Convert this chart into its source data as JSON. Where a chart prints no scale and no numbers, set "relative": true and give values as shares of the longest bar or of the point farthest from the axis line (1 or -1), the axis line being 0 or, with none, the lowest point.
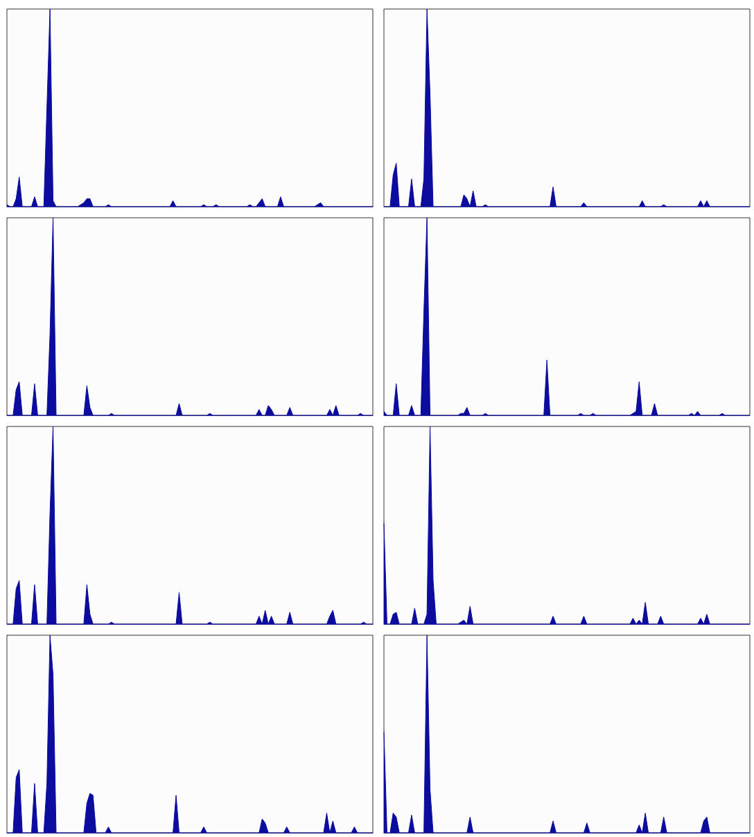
{
  "chart_data": [
    {
      "type": "area",
      "relative": true,
      "color": "#0c0c9e",
      "categories": [
        null,
        null,
        null,
        null,
        null,
        null,
        null,
        null,
        null,
        null,
        null,
        null,
        null,
        null,
        null,
        null,
        null,
        null,
        null,
        null,
        null,
        null,
        null,
        null,
        null,
        null,
        null,
        null,
        null,
        null,
        null,
        null,
        null,
        null,
        null,
        null,
        null,
        null,
        null,
        null,
        null,
        null,
        null,
        null,
        null,
        null,
        null,
        null,
        null,
        null,
        null,
        null,
        null,
        null,
        null,
        null,
        null,
        null,
        null,
        null,
        null,
        null,
        null,
        null,
        null,
        null,
        null,
        null,
        null,
        null,
        null,
        null,
        null,
        null,
        null,
        null,
        null,
        null,
        null,
        null,
        null,
        null,
        null,
        null,
        null,
        null,
        null,
        null,
        null,
        null,
        null,
        null,
        null,
        null,
        null,
        null,
        null,
        null,
        null,
        null,
        null,
        null,
        null,
        null,
        null,
        null,
        null,
        null,
        null,
        null,
        null,
        null,
        null,
        null,
        null,
        null,
        null,
        null,
        null,
        null
      ],
      "values": [
        0.01,
        0,
        0,
        0.04,
        0.15,
        0,
        0,
        0,
        0,
        0.05,
        0,
        0,
        0,
        0.5,
        1,
        0.03,
        0,
        0,
        0,
        0,
        0,
        0,
        0,
        0,
        0.01,
        0.02,
        0.04,
        0.04,
        0,
        0,
        0,
        0,
        0,
        0.01,
        0,
        0,
        0,
        0,
        0,
        0,
        0,
        0,
        0,
        0,
        0,
        0,
        0,
        0,
        0,
        0,
        0,
        0,
        0,
        0,
        0.03,
        0,
        0,
        0,
        0,
        0,
        0,
        0,
        0,
        0,
        0.01,
        0,
        0,
        0,
        0.01,
        0,
        0,
        0,
        0,
        0,
        0,
        0,
        0,
        0,
        0,
        0.01,
        0,
        0,
        0.02,
        0.04,
        0,
        0,
        0,
        0,
        0,
        0.05,
        0,
        0,
        0,
        0,
        0,
        0,
        0,
        0,
        0,
        0,
        0,
        0.01,
        0.02,
        0,
        0,
        0,
        0,
        0,
        0,
        0,
        0,
        0,
        0,
        0,
        0,
        0,
        0,
        0,
        0,
        0
      ]
    },
    {
      "type": "area",
      "relative": true,
      "color": "#0c0c9e",
      "categories": [
        null,
        null,
        null,
        null,
        null,
        null,
        null,
        null,
        null,
        null,
        null,
        null,
        null,
        null,
        null,
        null,
        null,
        null,
        null,
        null,
        null,
        null,
        null,
        null,
        null,
        null,
        null,
        null,
        null,
        null,
        null,
        null,
        null,
        null,
        null,
        null,
        null,
        null,
        null,
        null,
        null,
        null,
        null,
        null,
        null,
        null,
        null,
        null,
        null,
        null,
        null,
        null,
        null,
        null,
        null,
        null,
        null,
        null,
        null,
        null,
        null,
        null,
        null,
        null,
        null,
        null,
        null,
        null,
        null,
        null,
        null,
        null,
        null,
        null,
        null,
        null,
        null,
        null,
        null,
        null,
        null,
        null,
        null,
        null,
        null,
        null,
        null,
        null,
        null,
        null,
        null,
        null,
        null,
        null,
        null,
        null,
        null,
        null,
        null,
        null,
        null,
        null,
        null,
        null,
        null,
        null,
        null,
        null,
        null,
        null,
        null,
        null,
        null,
        null,
        null,
        null,
        null,
        null,
        null,
        null
      ],
      "values": [
        0,
        0,
        0,
        0.16,
        0.22,
        0,
        0,
        0,
        0,
        0.14,
        0,
        0,
        0,
        0.14,
        1,
        0.57,
        0,
        0,
        0,
        0,
        0,
        0,
        0,
        0,
        0,
        0,
        0.06,
        0.04,
        0,
        0.08,
        0,
        0,
        0,
        0.01,
        0,
        0,
        0,
        0,
        0,
        0,
        0,
        0,
        0,
        0,
        0,
        0,
        0,
        0,
        0,
        0,
        0,
        0,
        0,
        0,
        0,
        0.1,
        0,
        0,
        0,
        0,
        0,
        0,
        0,
        0,
        0,
        0.02,
        0,
        0,
        0,
        0,
        0,
        0,
        0,
        0,
        0,
        0,
        0,
        0,
        0,
        0,
        0,
        0,
        0,
        0,
        0.03,
        0,
        0,
        0,
        0,
        0,
        0,
        0.01,
        0,
        0,
        0,
        0,
        0,
        0,
        0,
        0,
        0,
        0,
        0,
        0.03,
        0,
        0.03,
        0,
        0,
        0,
        0,
        0,
        0,
        0,
        0,
        0,
        0,
        0,
        0,
        0,
        0
      ]
    },
    {
      "type": "area",
      "relative": true,
      "color": "#0c0c9e",
      "categories": [
        null,
        null,
        null,
        null,
        null,
        null,
        null,
        null,
        null,
        null,
        null,
        null,
        null,
        null,
        null,
        null,
        null,
        null,
        null,
        null,
        null,
        null,
        null,
        null,
        null,
        null,
        null,
        null,
        null,
        null,
        null,
        null,
        null,
        null,
        null,
        null,
        null,
        null,
        null,
        null,
        null,
        null,
        null,
        null,
        null,
        null,
        null,
        null,
        null,
        null,
        null,
        null,
        null,
        null,
        null,
        null,
        null,
        null,
        null,
        null,
        null,
        null,
        null,
        null,
        null,
        null,
        null,
        null,
        null,
        null,
        null,
        null,
        null,
        null,
        null,
        null,
        null,
        null,
        null,
        null,
        null,
        null,
        null,
        null,
        null,
        null,
        null,
        null,
        null,
        null,
        null,
        null,
        null,
        null,
        null,
        null,
        null,
        null,
        null,
        null,
        null,
        null,
        null,
        null,
        null,
        null,
        null,
        null,
        null,
        null,
        null,
        null,
        null,
        null,
        null,
        null,
        null,
        null,
        null,
        null
      ],
      "values": [
        0,
        0,
        0,
        0.13,
        0.17,
        0,
        0,
        0,
        0,
        0.16,
        0,
        0,
        0,
        0,
        0.41,
        1,
        0,
        0,
        0,
        0,
        0,
        0,
        0,
        0,
        0,
        0,
        0.15,
        0.04,
        0,
        0,
        0,
        0,
        0,
        0,
        0.01,
        0,
        0,
        0,
        0,
        0,
        0,
        0,
        0,
        0,
        0,
        0,
        0,
        0,
        0,
        0,
        0,
        0,
        0,
        0,
        0,
        0,
        0.06,
        0,
        0,
        0,
        0,
        0,
        0,
        0,
        0,
        0,
        0.01,
        0,
        0,
        0,
        0,
        0,
        0,
        0,
        0,
        0,
        0,
        0,
        0,
        0,
        0,
        0,
        0.03,
        0,
        0,
        0.05,
        0.03,
        0,
        0,
        0,
        0,
        0,
        0.04,
        0,
        0,
        0,
        0,
        0,
        0,
        0,
        0,
        0,
        0,
        0,
        0,
        0.03,
        0,
        0.05,
        0,
        0,
        0,
        0,
        0,
        0,
        0,
        0.01,
        0,
        0,
        0,
        0
      ]
    },
    {
      "type": "area",
      "relative": true,
      "color": "#0c0c9e",
      "categories": [
        null,
        null,
        null,
        null,
        null,
        null,
        null,
        null,
        null,
        null,
        null,
        null,
        null,
        null,
        null,
        null,
        null,
        null,
        null,
        null,
        null,
        null,
        null,
        null,
        null,
        null,
        null,
        null,
        null,
        null,
        null,
        null,
        null,
        null,
        null,
        null,
        null,
        null,
        null,
        null,
        null,
        null,
        null,
        null,
        null,
        null,
        null,
        null,
        null,
        null,
        null,
        null,
        null,
        null,
        null,
        null,
        null,
        null,
        null,
        null,
        null,
        null,
        null,
        null,
        null,
        null,
        null,
        null,
        null,
        null,
        null,
        null,
        null,
        null,
        null,
        null,
        null,
        null,
        null,
        null,
        null,
        null,
        null,
        null,
        null,
        null,
        null,
        null,
        null,
        null,
        null,
        null,
        null,
        null,
        null,
        null,
        null,
        null,
        null,
        null,
        null,
        null,
        null,
        null,
        null,
        null,
        null,
        null,
        null,
        null,
        null,
        null,
        null,
        null,
        null,
        null,
        null,
        null,
        null,
        null
      ],
      "values": [
        0.02,
        0,
        0,
        0,
        0.16,
        0,
        0,
        0,
        0,
        0.05,
        0,
        0,
        0,
        0.53,
        1,
        0,
        0,
        0,
        0,
        0,
        0,
        0,
        0,
        0,
        0,
        0.01,
        0.01,
        0.04,
        0,
        0,
        0,
        0,
        0,
        0.01,
        0,
        0,
        0,
        0,
        0,
        0,
        0,
        0,
        0,
        0,
        0,
        0,
        0,
        0,
        0,
        0,
        0,
        0,
        0,
        0.28,
        0,
        0,
        0,
        0,
        0,
        0,
        0,
        0,
        0,
        0,
        0.01,
        0,
        0,
        0,
        0.01,
        0,
        0,
        0,
        0,
        0,
        0,
        0,
        0,
        0,
        0,
        0,
        0,
        0.01,
        0.02,
        0.17,
        0,
        0,
        0,
        0,
        0.06,
        0,
        0,
        0,
        0,
        0,
        0,
        0,
        0,
        0,
        0,
        0,
        0.01,
        0,
        0.02,
        0,
        0,
        0,
        0,
        0,
        0,
        0,
        0.01,
        0,
        0,
        0,
        0,
        0,
        0,
        0,
        0,
        0
      ]
    },
    {
      "type": "area",
      "relative": true,
      "color": "#0c0c9e",
      "categories": [
        null,
        null,
        null,
        null,
        null,
        null,
        null,
        null,
        null,
        null,
        null,
        null,
        null,
        null,
        null,
        null,
        null,
        null,
        null,
        null,
        null,
        null,
        null,
        null,
        null,
        null,
        null,
        null,
        null,
        null,
        null,
        null,
        null,
        null,
        null,
        null,
        null,
        null,
        null,
        null,
        null,
        null,
        null,
        null,
        null,
        null,
        null,
        null,
        null,
        null,
        null,
        null,
        null,
        null,
        null,
        null,
        null,
        null,
        null,
        null,
        null,
        null,
        null,
        null,
        null,
        null,
        null,
        null,
        null,
        null,
        null,
        null,
        null,
        null,
        null,
        null,
        null,
        null,
        null,
        null,
        null,
        null,
        null,
        null,
        null,
        null,
        null,
        null,
        null,
        null,
        null,
        null,
        null,
        null,
        null,
        null,
        null,
        null,
        null,
        null,
        null,
        null,
        null,
        null,
        null,
        null,
        null,
        null,
        null,
        null,
        null,
        null,
        null,
        null,
        null,
        null,
        null,
        null,
        null,
        null
      ],
      "values": [
        0,
        0,
        0,
        0.18,
        0.22,
        0,
        0,
        0,
        0,
        0.2,
        0,
        0,
        0,
        0,
        0.56,
        1,
        0,
        0,
        0,
        0,
        0,
        0,
        0,
        0,
        0,
        0,
        0.2,
        0.05,
        0,
        0,
        0,
        0,
        0,
        0,
        0.01,
        0,
        0,
        0,
        0,
        0,
        0,
        0,
        0,
        0,
        0,
        0,
        0,
        0,
        0,
        0,
        0,
        0,
        0,
        0,
        0,
        0,
        0.16,
        0,
        0,
        0,
        0,
        0,
        0,
        0,
        0,
        0,
        0.01,
        0,
        0,
        0,
        0,
        0,
        0,
        0,
        0,
        0,
        0,
        0,
        0,
        0,
        0,
        0,
        0.04,
        0,
        0.07,
        0,
        0.04,
        0,
        0,
        0,
        0,
        0,
        0.06,
        0,
        0,
        0,
        0,
        0,
        0,
        0,
        0,
        0,
        0,
        0,
        0,
        0.04,
        0.07,
        0,
        0,
        0,
        0,
        0,
        0,
        0,
        0,
        0,
        0.01,
        0,
        0,
        0
      ]
    },
    {
      "type": "area",
      "relative": true,
      "color": "#0c0c9e",
      "categories": [
        null,
        null,
        null,
        null,
        null,
        null,
        null,
        null,
        null,
        null,
        null,
        null,
        null,
        null,
        null,
        null,
        null,
        null,
        null,
        null,
        null,
        null,
        null,
        null,
        null,
        null,
        null,
        null,
        null,
        null,
        null,
        null,
        null,
        null,
        null,
        null,
        null,
        null,
        null,
        null,
        null,
        null,
        null,
        null,
        null,
        null,
        null,
        null,
        null,
        null,
        null,
        null,
        null,
        null,
        null,
        null,
        null,
        null,
        null,
        null,
        null,
        null,
        null,
        null,
        null,
        null,
        null,
        null,
        null,
        null,
        null,
        null,
        null,
        null,
        null,
        null,
        null,
        null,
        null,
        null,
        null,
        null,
        null,
        null,
        null,
        null,
        null,
        null,
        null,
        null,
        null,
        null,
        null,
        null,
        null,
        null,
        null,
        null,
        null,
        null,
        null,
        null,
        null,
        null,
        null,
        null,
        null,
        null,
        null,
        null,
        null,
        null,
        null,
        null,
        null,
        null,
        null,
        null,
        null,
        null
      ],
      "values": [
        0.51,
        0,
        0,
        0.05,
        0.06,
        0,
        0,
        0,
        0,
        0,
        0.08,
        0,
        0,
        0,
        0.05,
        1,
        0.22,
        0,
        0,
        0,
        0,
        0,
        0,
        0,
        0,
        0.01,
        0.02,
        0,
        0.09,
        0,
        0,
        0,
        0,
        0,
        0,
        0,
        0,
        0,
        0,
        0,
        0,
        0,
        0,
        0,
        0,
        0,
        0,
        0,
        0,
        0,
        0,
        0,
        0,
        0,
        0,
        0.04,
        0,
        0,
        0,
        0,
        0,
        0,
        0,
        0,
        0,
        0.04,
        0,
        0,
        0,
        0,
        0,
        0,
        0,
        0,
        0,
        0,
        0,
        0,
        0,
        0,
        0,
        0.03,
        0,
        0.02,
        0,
        0.11,
        0,
        0,
        0,
        0,
        0.04,
        0,
        0,
        0,
        0,
        0,
        0,
        0,
        0,
        0,
        0,
        0,
        0,
        0.03,
        0,
        0.05,
        0,
        0,
        0,
        0,
        0,
        0,
        0,
        0,
        0,
        0,
        0,
        0,
        0,
        0
      ]
    },
    {
      "type": "area",
      "relative": true,
      "color": "#0c0c9e",
      "categories": [
        null,
        null,
        null,
        null,
        null,
        null,
        null,
        null,
        null,
        null,
        null,
        null,
        null,
        null,
        null,
        null,
        null,
        null,
        null,
        null,
        null,
        null,
        null,
        null,
        null,
        null,
        null,
        null,
        null,
        null,
        null,
        null,
        null,
        null,
        null,
        null,
        null,
        null,
        null,
        null,
        null,
        null,
        null,
        null,
        null,
        null,
        null,
        null,
        null,
        null,
        null,
        null,
        null,
        null,
        null,
        null,
        null,
        null,
        null,
        null,
        null,
        null,
        null,
        null,
        null,
        null,
        null,
        null,
        null,
        null,
        null,
        null,
        null,
        null,
        null,
        null,
        null,
        null,
        null,
        null,
        null,
        null,
        null,
        null,
        null,
        null,
        null,
        null,
        null,
        null,
        null,
        null,
        null,
        null,
        null,
        null,
        null,
        null,
        null,
        null,
        null,
        null,
        null,
        null,
        null,
        null,
        null,
        null,
        null,
        null,
        null,
        null,
        null,
        null,
        null,
        null,
        null,
        null,
        null,
        null
      ],
      "values": [
        0,
        0,
        0,
        0.28,
        0.32,
        0,
        0,
        0,
        0,
        0.25,
        0,
        0,
        0,
        0.25,
        1,
        0.8,
        0,
        0,
        0,
        0,
        0,
        0,
        0,
        0,
        0,
        0,
        0.15,
        0.2,
        0.19,
        0,
        0,
        0,
        0,
        0.03,
        0,
        0,
        0,
        0,
        0,
        0,
        0,
        0,
        0,
        0,
        0,
        0,
        0,
        0,
        0,
        0,
        0,
        0,
        0,
        0,
        0,
        0.19,
        0,
        0,
        0,
        0,
        0,
        0,
        0,
        0,
        0.03,
        0,
        0,
        0,
        0,
        0,
        0,
        0,
        0,
        0,
        0,
        0,
        0,
        0,
        0,
        0,
        0,
        0,
        0,
        0.07,
        0.05,
        0,
        0,
        0,
        0,
        0,
        0,
        0.03,
        0,
        0,
        0,
        0,
        0,
        0,
        0,
        0,
        0,
        0,
        0,
        0,
        0.1,
        0,
        0.06,
        0,
        0,
        0,
        0,
        0,
        0,
        0.03,
        0,
        0,
        0,
        0,
        0,
        0
      ]
    },
    {
      "type": "area",
      "relative": true,
      "color": "#0c0c9e",
      "categories": [
        null,
        null,
        null,
        null,
        null,
        null,
        null,
        null,
        null,
        null,
        null,
        null,
        null,
        null,
        null,
        null,
        null,
        null,
        null,
        null,
        null,
        null,
        null,
        null,
        null,
        null,
        null,
        null,
        null,
        null,
        null,
        null,
        null,
        null,
        null,
        null,
        null,
        null,
        null,
        null,
        null,
        null,
        null,
        null,
        null,
        null,
        null,
        null,
        null,
        null,
        null,
        null,
        null,
        null,
        null,
        null,
        null,
        null,
        null,
        null,
        null,
        null,
        null,
        null,
        null,
        null,
        null,
        null,
        null,
        null,
        null,
        null,
        null,
        null,
        null,
        null,
        null,
        null,
        null,
        null,
        null,
        null,
        null,
        null,
        null,
        null,
        null,
        null,
        null,
        null,
        null,
        null,
        null,
        null,
        null,
        null,
        null,
        null,
        null,
        null,
        null,
        null,
        null,
        null,
        null,
        null,
        null,
        null,
        null,
        null,
        null,
        null,
        null,
        null,
        null,
        null,
        null,
        null,
        null,
        null
      ],
      "values": [
        0.51,
        0,
        0,
        0.1,
        0.08,
        0,
        0,
        0,
        0,
        0.09,
        0,
        0,
        0,
        0,
        1,
        0.22,
        0,
        0,
        0,
        0,
        0,
        0,
        0,
        0,
        0,
        0,
        0,
        0,
        0.08,
        0,
        0,
        0,
        0,
        0,
        0,
        0,
        0,
        0,
        0,
        0,
        0,
        0,
        0,
        0,
        0,
        0,
        0,
        0,
        0,
        0,
        0,
        0,
        0,
        0,
        0,
        0.06,
        0,
        0,
        0,
        0,
        0,
        0,
        0,
        0,
        0,
        0,
        0.05,
        0,
        0,
        0,
        0,
        0,
        0,
        0,
        0,
        0,
        0,
        0,
        0,
        0,
        0,
        0,
        0,
        0.04,
        0,
        0.1,
        0,
        0,
        0,
        0,
        0,
        0.08,
        0,
        0,
        0,
        0,
        0,
        0,
        0,
        0,
        0,
        0,
        0,
        0,
        0.06,
        0.08,
        0,
        0,
        0,
        0,
        0,
        0,
        0,
        0,
        0,
        0,
        0,
        0,
        0,
        0
      ]
    }
  ]
}
